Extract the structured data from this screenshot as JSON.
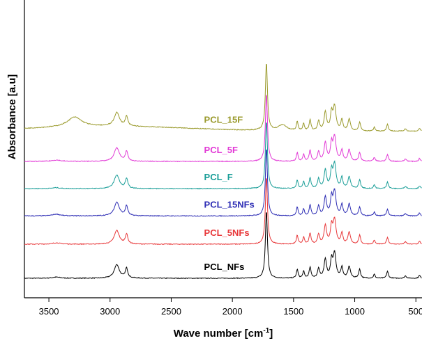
{
  "chart_data": {
    "type": "line",
    "title": "",
    "xlabel": "Wave number [cm",
    "xlabel_sup": "-1",
    "xlabel_end": "]",
    "ylabel": "Absorbance [a.u]",
    "x_reversed": true,
    "xlim": [
      3700,
      450
    ],
    "x_ticks": [
      3500,
      3000,
      2500,
      2000,
      1500,
      1000,
      500
    ],
    "x_tick_labels": [
      "3500",
      "3000",
      "2500",
      "2000",
      "1500",
      "1000",
      "500"
    ],
    "y_ticks_shown": false,
    "grid": false,
    "legend": "inline labels above each trace",
    "y_unit": "arbitrary, vertically offset",
    "peak_model": {
      "shared_peaks": [
        {
          "center": 2945,
          "width": 25,
          "height": 0.7
        },
        {
          "center": 2865,
          "width": 12,
          "height": 0.5
        },
        {
          "center": 1722,
          "width": 10,
          "height": 3.5
        },
        {
          "center": 1470,
          "width": 8,
          "height": 0.45
        },
        {
          "center": 1418,
          "width": 8,
          "height": 0.35
        },
        {
          "center": 1365,
          "width": 9,
          "height": 0.55
        },
        {
          "center": 1295,
          "width": 10,
          "height": 0.5
        },
        {
          "center": 1240,
          "width": 12,
          "height": 0.95
        },
        {
          "center": 1190,
          "width": 10,
          "height": 0.85
        },
        {
          "center": 1165,
          "width": 14,
          "height": 1.25
        },
        {
          "center": 1105,
          "width": 10,
          "height": 0.55
        },
        {
          "center": 1045,
          "width": 12,
          "height": 0.6
        },
        {
          "center": 960,
          "width": 9,
          "height": 0.45
        },
        {
          "center": 840,
          "width": 8,
          "height": 0.2
        },
        {
          "center": 732,
          "width": 9,
          "height": 0.35
        },
        {
          "center": 585,
          "width": 10,
          "height": 0.12
        },
        {
          "center": 470,
          "width": 8,
          "height": 0.15
        }
      ]
    },
    "series": [
      {
        "name": "PCL_NFs",
        "color": "#000000",
        "offset": 0.0,
        "extra_peaks": [
          {
            "center": 3440,
            "width": 40,
            "height": 0.06
          }
        ]
      },
      {
        "name": "PCL_5NFs",
        "color": "#e8383a",
        "offset": 1.75,
        "extra_peaks": [
          {
            "center": 3440,
            "width": 40,
            "height": 0.07
          }
        ]
      },
      {
        "name": "PCL_15NFs",
        "color": "#2c2cb4",
        "offset": 3.2,
        "extra_peaks": [
          {
            "center": 3440,
            "width": 40,
            "height": 0.09
          }
        ]
      },
      {
        "name": "PCL_F",
        "color": "#1a9e98",
        "offset": 4.6,
        "extra_peaks": [
          {
            "center": 3440,
            "width": 40,
            "height": 0.05
          }
        ]
      },
      {
        "name": "PCL_5F",
        "color": "#e23ad6",
        "offset": 6.0,
        "extra_peaks": [
          {
            "center": 3440,
            "width": 40,
            "height": 0.07
          }
        ]
      },
      {
        "name": "PCL_15F",
        "color": "#9a9a2c",
        "offset": 7.55,
        "extra_peaks": [
          {
            "center": 3290,
            "width": 70,
            "height": 0.5
          },
          {
            "center": 1590,
            "width": 40,
            "height": 0.3
          }
        ]
      }
    ]
  }
}
